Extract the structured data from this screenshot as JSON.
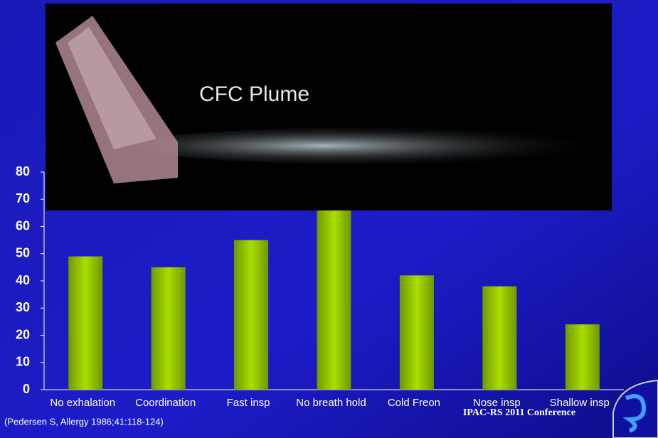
{
  "chart_data": {
    "type": "bar",
    "categories": [
      "No exhalation",
      "Coordination",
      "Fast insp",
      "No breath hold",
      "Cold Freon",
      "Nose insp",
      "Shallow insp"
    ],
    "values": [
      49,
      45,
      55,
      67,
      42,
      38,
      24
    ],
    "color": "#99cc00",
    "ylim": [
      0,
      80
    ],
    "yticks": [
      0,
      10,
      20,
      30,
      40,
      50,
      60,
      70,
      80
    ]
  },
  "image_label": "CFC Plume",
  "footnote": "(Pedersen S, Allergy 1986;41:118-124)",
  "conference": "IPAC-RS 2011 Conference"
}
